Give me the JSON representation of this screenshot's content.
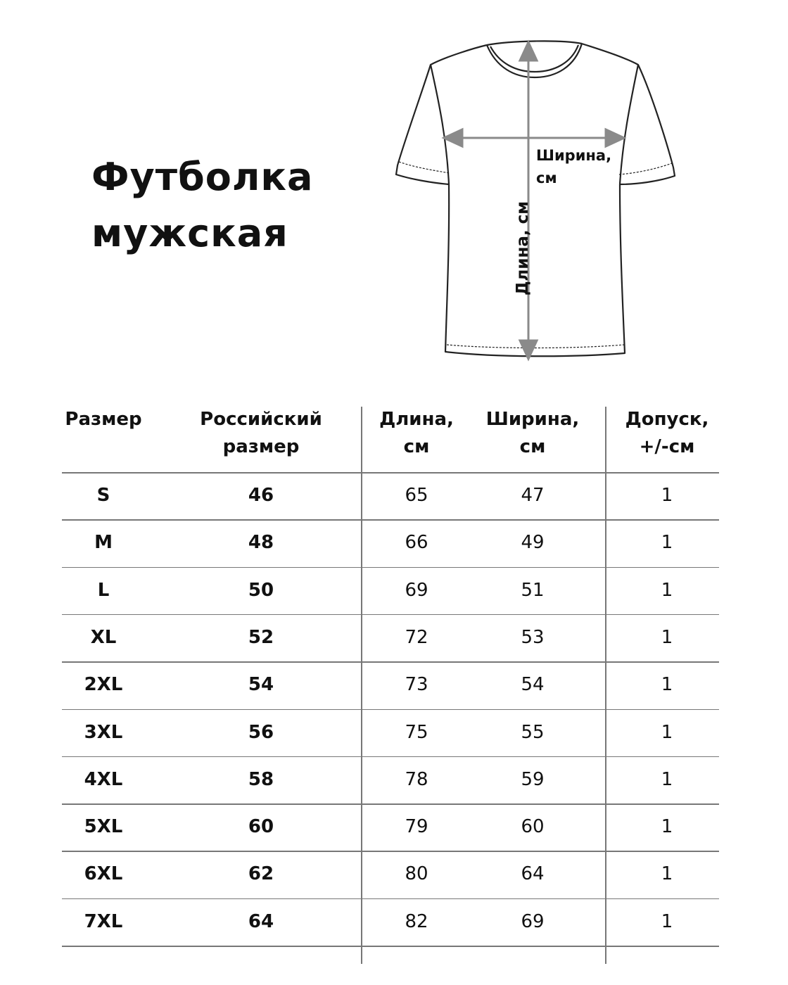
{
  "title": {
    "line1": "Футболка",
    "line2": "мужская"
  },
  "diagram": {
    "width_label_1": "Ширина,",
    "width_label_2": "см",
    "length_label": "Длина, см",
    "arrow_color": "#8a8a8a"
  },
  "table": {
    "headers": [
      {
        "l1": "Размер",
        "l2": ""
      },
      {
        "l1": "Российский",
        "l2": "размер"
      },
      {
        "l1": "Длина,",
        "l2": "см"
      },
      {
        "l1": "Ширина,",
        "l2": "см"
      },
      {
        "l1": "Допуск,",
        "l2": "+/-см"
      }
    ],
    "rows": [
      [
        "S",
        "46",
        "65",
        "47",
        "1"
      ],
      [
        "M",
        "48",
        "66",
        "49",
        "1"
      ],
      [
        "L",
        "50",
        "69",
        "51",
        "1"
      ],
      [
        "XL",
        "52",
        "72",
        "53",
        "1"
      ],
      [
        "2XL",
        "54",
        "73",
        "54",
        "1"
      ],
      [
        "3XL",
        "56",
        "75",
        "55",
        "1"
      ],
      [
        "4XL",
        "58",
        "78",
        "59",
        "1"
      ],
      [
        "5XL",
        "60",
        "79",
        "60",
        "1"
      ],
      [
        "6XL",
        "62",
        "80",
        "64",
        "1"
      ],
      [
        "7XL",
        "64",
        "82",
        "69",
        "1"
      ]
    ]
  }
}
